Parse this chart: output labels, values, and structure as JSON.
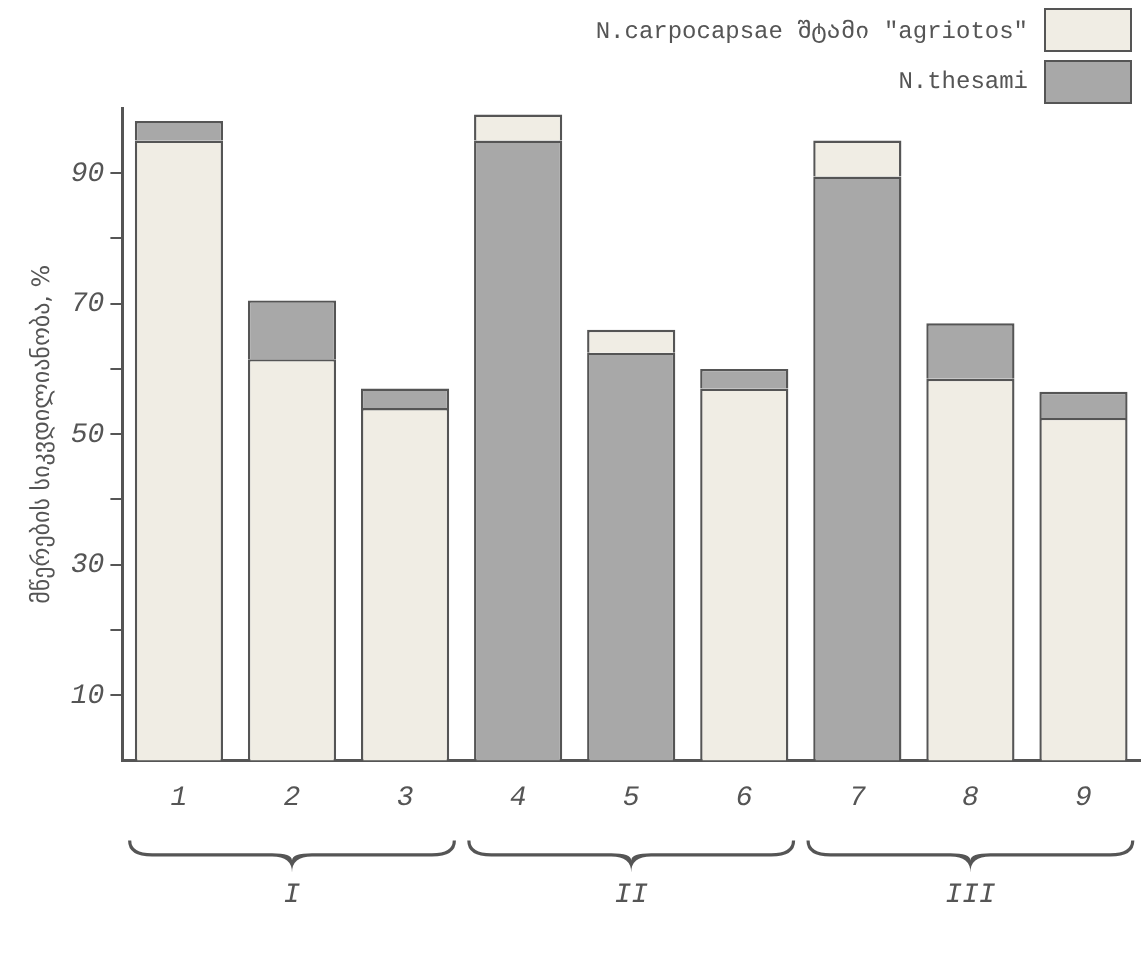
{
  "chart_data": {
    "type": "bar",
    "ylabel": "მწერების სიკვდილიანობა, %",
    "categories": [
      "1",
      "2",
      "3",
      "4",
      "5",
      "6",
      "7",
      "8",
      "9"
    ],
    "series": [
      {
        "name": "N.carpocapsae შტამი \"agriotos\"",
        "color": "#f0ede4",
        "base": [
          0,
          0,
          0,
          95,
          62.5,
          0,
          89.5,
          0,
          0
        ],
        "values": [
          95,
          61.5,
          54,
          4,
          3.5,
          57,
          5.5,
          58.5,
          52.5
        ]
      },
      {
        "name": "N.thesami",
        "color": "#a8a8a8",
        "base": [
          95,
          61.5,
          54,
          0,
          0,
          57,
          0,
          58.5,
          52.5
        ],
        "values": [
          3,
          9,
          3,
          95,
          62.5,
          3,
          89.5,
          8.5,
          4
        ]
      }
    ],
    "ylim": [
      0,
      100
    ],
    "yticks": [
      10,
      {
        "value": 20,
        "label": null
      },
      30,
      {
        "value": 40,
        "label": null
      },
      50,
      {
        "value": 60,
        "label": null
      },
      70,
      {
        "value": 80,
        "label": null
      },
      90
    ],
    "grid": false,
    "legend": "top right",
    "annotations": [
      "I",
      "II",
      "III"
    ]
  }
}
